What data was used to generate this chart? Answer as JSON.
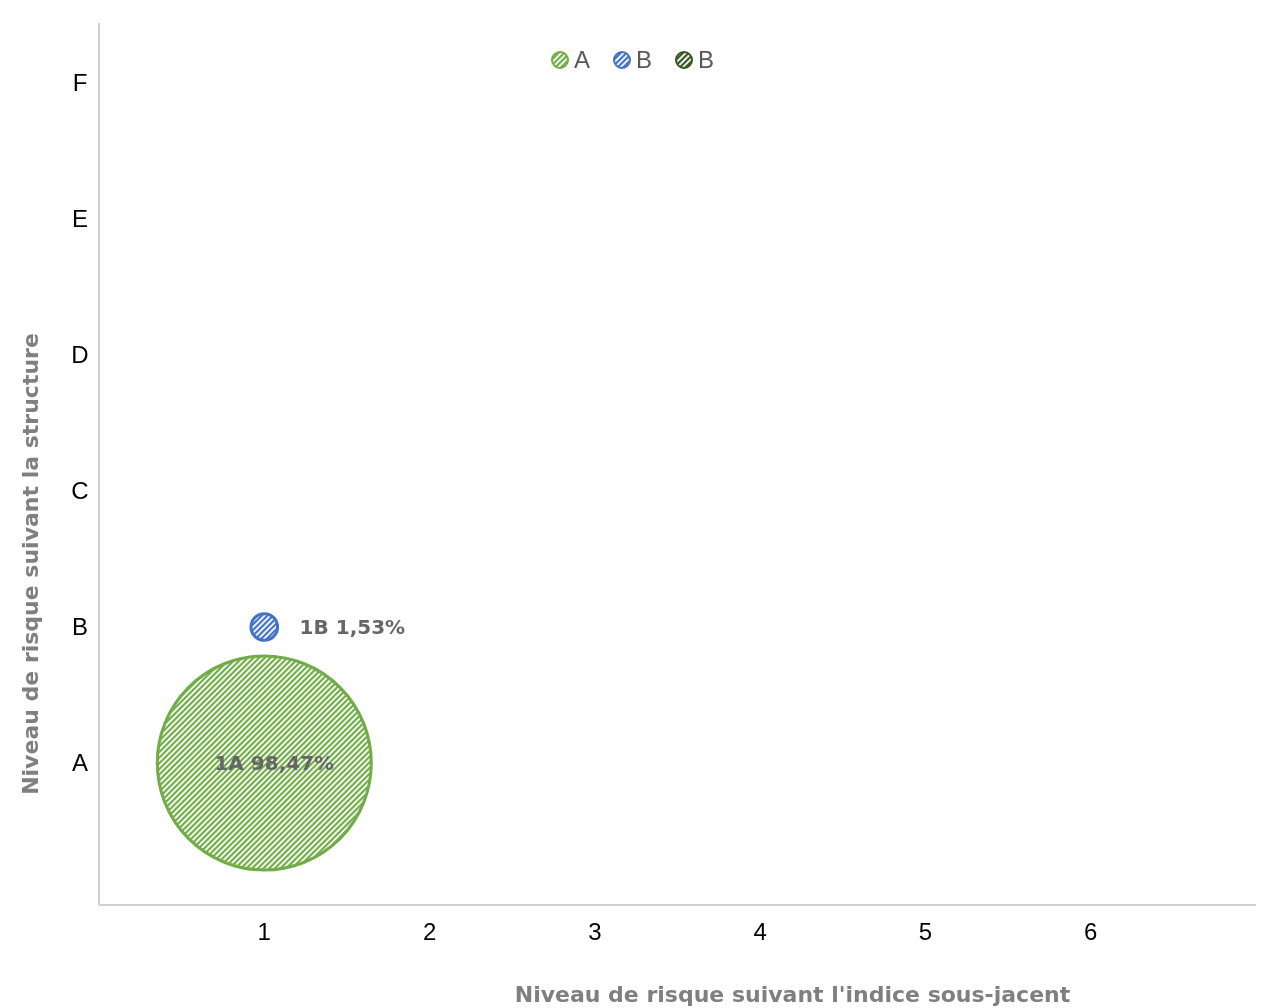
{
  "chart_data": {
    "type": "bubble",
    "orientation": "horizontal",
    "xlabel": "Niveau de risque suivant l'indice sous-jacent",
    "ylabel": "Niveau de risque suivant la structure",
    "xlim": [
      0,
      7
    ],
    "xticks": [
      1,
      2,
      3,
      4,
      5,
      6
    ],
    "categories": [
      "F",
      "E",
      "D",
      "C",
      "B",
      "A"
    ],
    "legend": "top",
    "series": [
      {
        "name": "A",
        "color": "#70ad47",
        "values": [
          null,
          null,
          null,
          null,
          null,
          1
        ],
        "sizes": [
          null,
          null,
          null,
          null,
          null,
          1
        ],
        "value_labels": [
          null,
          null,
          null,
          null,
          null,
          "1A 98,47%"
        ]
      },
      {
        "name": "B",
        "color": "#4472c4",
        "values": [
          null,
          null,
          null,
          null,
          1,
          null
        ],
        "sizes": [
          null,
          null,
          null,
          null,
          0.0155,
          null
        ],
        "value_labels": [
          null,
          null,
          null,
          null,
          "1B 1,53%",
          null
        ]
      },
      {
        "name": "B",
        "color": "#375623",
        "values": [
          null,
          null,
          null,
          null,
          null,
          null
        ],
        "sizes": [
          null,
          null,
          null,
          null,
          null,
          null
        ]
      }
    ]
  }
}
